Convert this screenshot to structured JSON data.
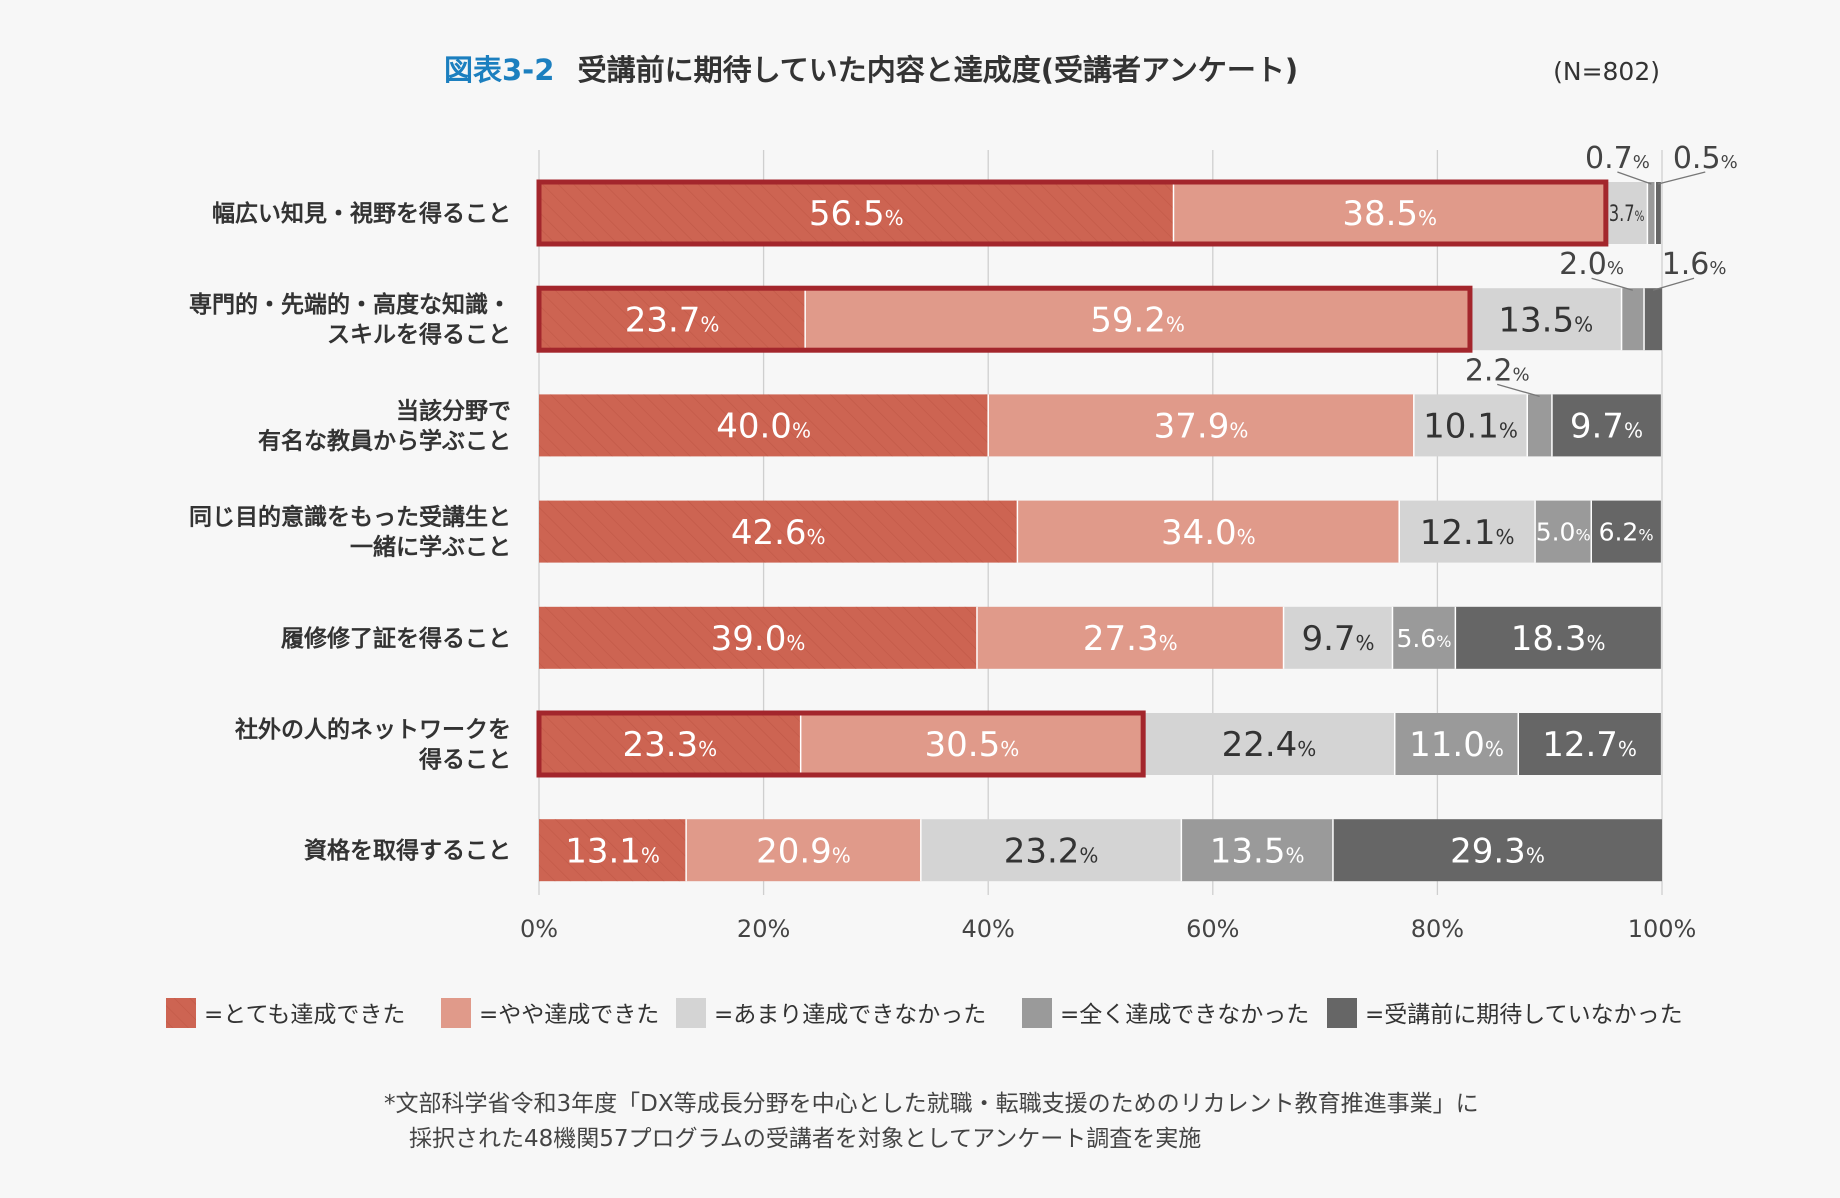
{
  "chart_data": {
    "type": "bar",
    "orientation": "horizontal",
    "stacked": true,
    "title_label": "図表3-2",
    "title": "受講前に期待していた内容と達成度(受講者アンケート)",
    "sample_size": "(N=802)",
    "categories": [
      [
        "幅広い知見・視野を得ること"
      ],
      [
        "専門的・先端的・高度な知識・",
        "スキルを得ること"
      ],
      [
        "当該分野で",
        "有名な教員から学ぶこと"
      ],
      [
        "同じ目的意識をもった受講生と",
        "一緒に学ぶこと"
      ],
      [
        "履修修了証を得ること"
      ],
      [
        "社外の人的ネットワークを",
        "得ること"
      ],
      [
        "資格を取得すること"
      ]
    ],
    "series": [
      {
        "name": "=とても達成できた",
        "color": "#cd6452",
        "values": [
          56.5,
          23.7,
          40.0,
          42.6,
          39.0,
          23.3,
          13.1
        ]
      },
      {
        "name": "=やや達成できた",
        "color": "#e09a8a",
        "values": [
          38.5,
          59.2,
          37.9,
          34.0,
          27.3,
          30.5,
          20.9
        ]
      },
      {
        "name": "=あまり達成できなかった",
        "color": "#d4d4d4",
        "values": [
          3.7,
          13.5,
          10.1,
          12.1,
          9.7,
          22.4,
          23.2
        ]
      },
      {
        "name": "=全く達成できなかった",
        "color": "#9a9a9a",
        "values": [
          0.7,
          2.0,
          2.2,
          5.0,
          5.6,
          11.0,
          13.5
        ]
      },
      {
        "name": "=受講前に期待していなかった",
        "color": "#666666",
        "values": [
          0.5,
          1.6,
          9.7,
          6.2,
          18.3,
          12.7,
          29.3
        ]
      }
    ],
    "highlighted_rows": [
      0,
      1,
      5
    ],
    "highlight_color": "#a3262c",
    "xlim": [
      0,
      100
    ],
    "xticks": [
      "0%",
      "20%",
      "40%",
      "60%",
      "80%",
      "100%"
    ],
    "grid": true,
    "legend_position": "bottom",
    "unit": "%"
  },
  "footnote": {
    "line1": "*文部科学省令和3年度「DX等成長分野を中心とした就職・転職支援のためのリカレント教育推進事業」に",
    "line2": "採択された48機関57プログラムの受講者を対象としてアンケート調査を実施"
  }
}
